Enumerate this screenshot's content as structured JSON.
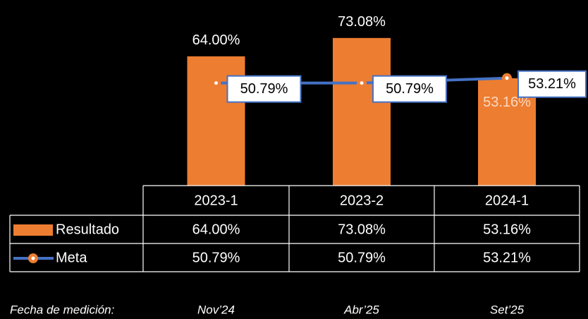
{
  "chart_data": {
    "type": "bar_line",
    "categories": [
      "2023-1",
      "2023-2",
      "2024-1"
    ],
    "series": [
      {
        "name": "Resultado",
        "type": "bar",
        "color": "#ED7D31",
        "values": [
          64.0,
          73.08,
          53.16
        ],
        "value_labels": [
          "64.00%",
          "73.08%",
          "53.16%"
        ]
      },
      {
        "name": "Meta",
        "type": "line",
        "color": "#4472C4",
        "marker_color": "#ED7D31",
        "values": [
          50.79,
          50.79,
          53.21
        ],
        "value_labels": [
          "50.79%",
          "50.79%",
          "53.21%"
        ]
      }
    ],
    "ylim": [
      0,
      80
    ]
  },
  "footer": {
    "label": "Fecha de medición:",
    "dates": [
      "Nov’24",
      "Abr’25",
      "Set’25"
    ]
  }
}
